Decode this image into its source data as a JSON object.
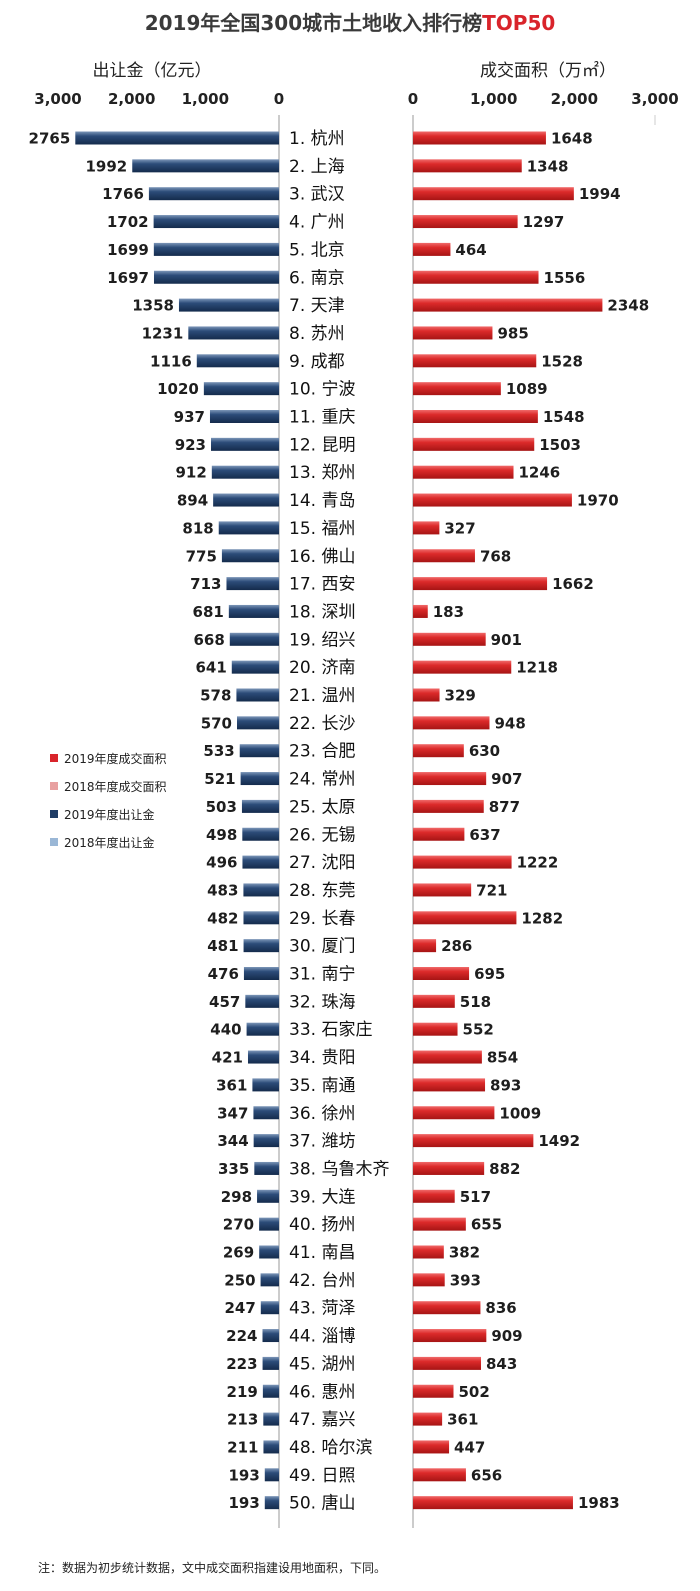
{
  "header": {
    "title_main": "2019年全国300城市土地收入排行榜",
    "title_accent": "TOP50"
  },
  "left_axis": {
    "title": "出让金（亿元）",
    "ticks": [
      "3,000",
      "2,000",
      "1,000",
      "0"
    ]
  },
  "right_axis": {
    "title": "成交面积（万㎡）",
    "ticks": [
      "0",
      "1,000",
      "2,000",
      "3,000"
    ]
  },
  "legend": [
    {
      "label": "2019年度成交面积",
      "color": "#d9242b"
    },
    {
      "label": "2018年度成交面积",
      "color": "#e8a0a0"
    },
    {
      "label": "2019年度出让金",
      "color": "#1f3d66"
    },
    {
      "label": "2018年度出让金",
      "color": "#9ab7d6"
    }
  ],
  "colors": {
    "revenue_2019": "#1f3d66",
    "area_2019": "#d9242b"
  },
  "footnote": "注：数据为初步统计数据，文中成交面积指建设用地面积，下同。",
  "chart_data": {
    "type": "bar",
    "title": "2019年全国300城市土地收入排行榜TOP50",
    "legend_position": "left-middle",
    "categories": [
      "1. 杭州",
      "2. 上海",
      "3. 武汉",
      "4. 广州",
      "5. 北京",
      "6. 南京",
      "7. 天津",
      "8. 苏州",
      "9. 成都",
      "10. 宁波",
      "11. 重庆",
      "12. 昆明",
      "13. 郑州",
      "14. 青岛",
      "15. 福州",
      "16. 佛山",
      "17. 西安",
      "18. 深圳",
      "19. 绍兴",
      "20. 济南",
      "21. 温州",
      "22. 长沙",
      "23. 合肥",
      "24. 常州",
      "25. 太原",
      "26. 无锡",
      "27. 沈阳",
      "28. 东莞",
      "29. 长春",
      "30. 厦门",
      "31. 南宁",
      "32. 珠海",
      "33. 石家庄",
      "34. 贵阳",
      "35. 南通",
      "36. 徐州",
      "37. 潍坊",
      "38. 乌鲁木齐",
      "39. 大连",
      "40. 扬州",
      "41. 南昌",
      "42. 台州",
      "43. 菏泽",
      "44. 淄博",
      "45. 湖州",
      "46. 惠州",
      "47. 嘉兴",
      "48. 哈尔滨",
      "49. 日照",
      "50. 唐山"
    ],
    "series": [
      {
        "name": "2019年度出让金",
        "axis": "出让金（亿元）",
        "xlim": [
          0,
          3000
        ],
        "values": [
          2765,
          1992,
          1766,
          1702,
          1699,
          1697,
          1358,
          1231,
          1116,
          1020,
          937,
          923,
          912,
          894,
          818,
          775,
          713,
          681,
          668,
          641,
          578,
          570,
          533,
          521,
          503,
          498,
          496,
          483,
          482,
          481,
          476,
          457,
          440,
          421,
          361,
          347,
          344,
          335,
          298,
          270,
          269,
          250,
          247,
          224,
          223,
          219,
          213,
          211,
          193,
          193
        ]
      },
      {
        "name": "2019年度成交面积",
        "axis": "成交面积（万㎡）",
        "xlim": [
          0,
          3000
        ],
        "values": [
          1648,
          1348,
          1994,
          1297,
          464,
          1556,
          2348,
          985,
          1528,
          1089,
          1548,
          1503,
          1246,
          1970,
          327,
          768,
          1662,
          183,
          901,
          1218,
          329,
          948,
          630,
          907,
          877,
          637,
          1222,
          721,
          1282,
          286,
          695,
          518,
          552,
          854,
          893,
          1009,
          1492,
          882,
          517,
          655,
          382,
          393,
          836,
          909,
          843,
          502,
          361,
          447,
          656,
          1983
        ]
      }
    ]
  }
}
